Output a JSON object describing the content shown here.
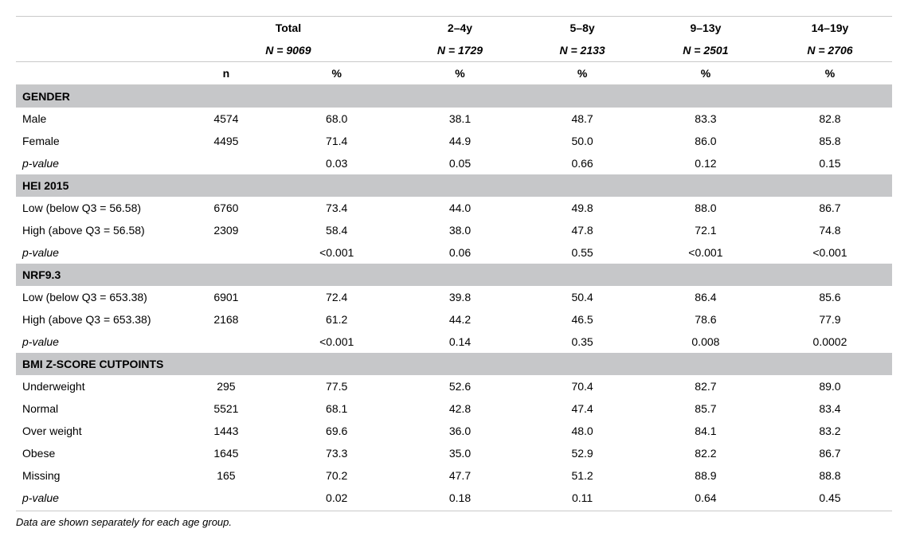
{
  "header": {
    "groups": [
      {
        "label": "Total",
        "n": "N = 9069"
      },
      {
        "label": "2–4y",
        "n": "N = 1729"
      },
      {
        "label": "5–8y",
        "n": "N = 2133"
      },
      {
        "label": "9–13y",
        "n": "N = 2501"
      },
      {
        "label": "14–19y",
        "n": "N = 2706"
      }
    ],
    "unit_n": "n",
    "unit_pct": "%"
  },
  "sections": [
    {
      "title": "GENDER",
      "rows": [
        {
          "label": "Male",
          "n": "4574",
          "total": "68.0",
          "g2_4": "38.1",
          "g5_8": "48.7",
          "g9_13": "83.3",
          "g14_19": "82.8"
        },
        {
          "label": "Female",
          "n": "4495",
          "total": "71.4",
          "g2_4": "44.9",
          "g5_8": "50.0",
          "g9_13": "86.0",
          "g14_19": "85.8"
        },
        {
          "label": "p-value",
          "n": "",
          "total": "0.03",
          "g2_4": "0.05",
          "g5_8": "0.66",
          "g9_13": "0.12",
          "g14_19": "0.15",
          "pval": true
        }
      ]
    },
    {
      "title": "HEI 2015",
      "rows": [
        {
          "label": "Low (below Q3 = 56.58)",
          "n": "6760",
          "total": "73.4",
          "g2_4": "44.0",
          "g5_8": "49.8",
          "g9_13": "88.0",
          "g14_19": "86.7"
        },
        {
          "label": "High (above Q3 = 56.58)",
          "n": "2309",
          "total": "58.4",
          "g2_4": "38.0",
          "g5_8": "47.8",
          "g9_13": "72.1",
          "g14_19": "74.8"
        },
        {
          "label": "p-value",
          "n": "",
          "total": "<0.001",
          "g2_4": "0.06",
          "g5_8": "0.55",
          "g9_13": "<0.001",
          "g14_19": "<0.001",
          "pval": true
        }
      ]
    },
    {
      "title": "NRF9.3",
      "rows": [
        {
          "label": "Low (below Q3 = 653.38)",
          "n": "6901",
          "total": "72.4",
          "g2_4": "39.8",
          "g5_8": "50.4",
          "g9_13": "86.4",
          "g14_19": "85.6"
        },
        {
          "label": "High (above Q3 = 653.38)",
          "n": "2168",
          "total": "61.2",
          "g2_4": "44.2",
          "g5_8": "46.5",
          "g9_13": "78.6",
          "g14_19": "77.9"
        },
        {
          "label": "p-value",
          "n": "",
          "total": "<0.001",
          "g2_4": "0.14",
          "g5_8": "0.35",
          "g9_13": "0.008",
          "g14_19": "0.0002",
          "pval": true
        }
      ]
    },
    {
      "title": "BMI Z-SCORE CUTPOINTS",
      "rows": [
        {
          "label": "Underweight",
          "n": "295",
          "total": "77.5",
          "g2_4": "52.6",
          "g5_8": "70.4",
          "g9_13": "82.7",
          "g14_19": "89.0"
        },
        {
          "label": "Normal",
          "n": "5521",
          "total": "68.1",
          "g2_4": "42.8",
          "g5_8": "47.4",
          "g9_13": "85.7",
          "g14_19": "83.4"
        },
        {
          "label": "Over weight",
          "n": "1443",
          "total": "69.6",
          "g2_4": "36.0",
          "g5_8": "48.0",
          "g9_13": "84.1",
          "g14_19": "83.2"
        },
        {
          "label": "Obese",
          "n": "1645",
          "total": "73.3",
          "g2_4": "35.0",
          "g5_8": "52.9",
          "g9_13": "82.2",
          "g14_19": "86.7"
        },
        {
          "label": "Missing",
          "n": "165",
          "total": "70.2",
          "g2_4": "47.7",
          "g5_8": "51.2",
          "g9_13": "88.9",
          "g14_19": "88.8"
        },
        {
          "label": "p-value",
          "n": "",
          "total": "0.02",
          "g2_4": "0.18",
          "g5_8": "0.11",
          "g9_13": "0.64",
          "g14_19": "0.45",
          "pval": true
        }
      ]
    }
  ],
  "footnote": "Data are shown separately for each age group."
}
